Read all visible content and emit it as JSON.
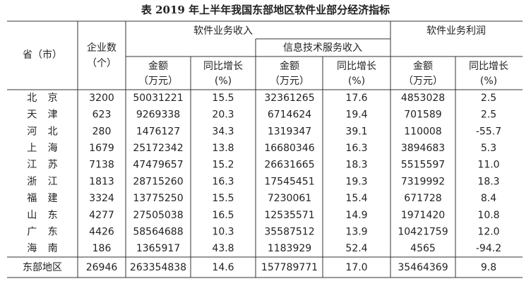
{
  "title": "表 2019 年上半年我国东部地区软件业部分经济指标",
  "table": {
    "header": {
      "province": "省（市）",
      "enterprises": [
        "企业数",
        "（个）"
      ],
      "software_revenue": "软件业务收入",
      "it_service_revenue": "信息技术服务收入",
      "software_profit": "软件业务利润",
      "amount": [
        "金额",
        "（万元）"
      ],
      "growth": [
        "同比增长",
        "(%)"
      ]
    },
    "rows": [
      [
        "北京",
        "3200",
        "50031221",
        "15.5",
        "32361265",
        "17.6",
        "4853028",
        "2.5"
      ],
      [
        "天津",
        "623",
        "9269338",
        "20.3",
        "6714624",
        "19.4",
        "701589",
        "2.5"
      ],
      [
        "河北",
        "280",
        "1476127",
        "34.3",
        "1319347",
        "39.1",
        "110008",
        "-55.7"
      ],
      [
        "上海",
        "1679",
        "25172342",
        "13.8",
        "16680346",
        "16.3",
        "3894683",
        "5.3"
      ],
      [
        "江苏",
        "7138",
        "47479657",
        "15.2",
        "26631665",
        "18.3",
        "5515597",
        "11.0"
      ],
      [
        "浙江",
        "1813",
        "28715260",
        "16.3",
        "17545451",
        "19.3",
        "7319992",
        "18.3"
      ],
      [
        "福建",
        "3324",
        "13775250",
        "15.5",
        "7230061",
        "15.4",
        "671728",
        "8.4"
      ],
      [
        "山东",
        "4277",
        "27505038",
        "16.5",
        "12535571",
        "14.9",
        "1971420",
        "10.8"
      ],
      [
        "广东",
        "4426",
        "58564688",
        "10.3",
        "35587512",
        "13.9",
        "10421759",
        "12.0"
      ],
      [
        "海南",
        "186",
        "1365917",
        "43.8",
        "1183929",
        "52.4",
        "4565",
        "-94.2"
      ]
    ],
    "total": [
      "东部地区",
      "26946",
      "263354838",
      "14.6",
      "157789771",
      "17.0",
      "35464369",
      "9.8"
    ]
  }
}
